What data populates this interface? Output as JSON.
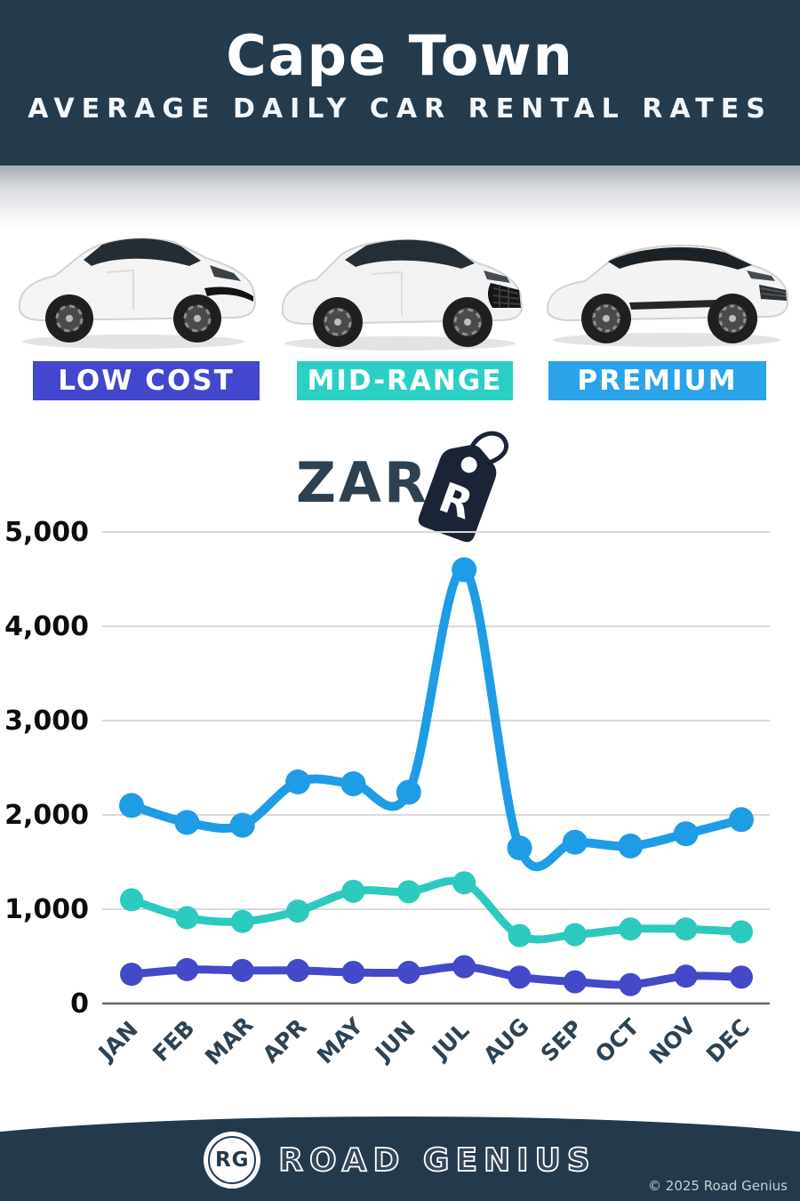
{
  "header": {
    "title": "Cape Town",
    "subtitle": "AVERAGE DAILY CAR RENTAL RATES"
  },
  "categories": [
    {
      "label": "LOW COST",
      "color": "#4347cd"
    },
    {
      "label": "MID-RANGE",
      "color": "#2bd0c5"
    },
    {
      "label": "PREMIUM",
      "color": "#2aa3e8"
    }
  ],
  "currency": {
    "code": "ZAR",
    "symbol": "R"
  },
  "chart_data": {
    "type": "line",
    "categories": [
      "JAN",
      "FEB",
      "MAR",
      "APR",
      "MAY",
      "JUN",
      "JUL",
      "AUG",
      "SEP",
      "OCT",
      "NOV",
      "DEC"
    ],
    "series": [
      {
        "name": "PREMIUM",
        "color": "#1e9ce6",
        "values": [
          2100,
          1920,
          1890,
          2350,
          2330,
          2240,
          4600,
          1650,
          1710,
          1670,
          1800,
          1950
        ]
      },
      {
        "name": "MID-RANGE",
        "color": "#2cc9bf",
        "values": [
          1100,
          910,
          870,
          980,
          1190,
          1185,
          1280,
          720,
          730,
          790,
          790,
          760
        ]
      },
      {
        "name": "LOW COST",
        "color": "#4349c8",
        "values": [
          310,
          360,
          350,
          350,
          330,
          330,
          390,
          280,
          230,
          200,
          290,
          280
        ]
      }
    ],
    "title": "Cape Town Average Daily Car Rental Rates (ZAR)",
    "xlabel": "",
    "ylabel": "",
    "ylim": [
      0,
      5000
    ],
    "ytick_step": 1000,
    "ytick_labels": [
      "0",
      "1,000",
      "2,000",
      "3,000",
      "4,000",
      "5,000"
    ],
    "grid": true,
    "legend_position": "none"
  },
  "footer": {
    "logo_initials": "RG",
    "brand": "ROAD GENIUS",
    "copyright": "© 2025 Road Genius"
  }
}
